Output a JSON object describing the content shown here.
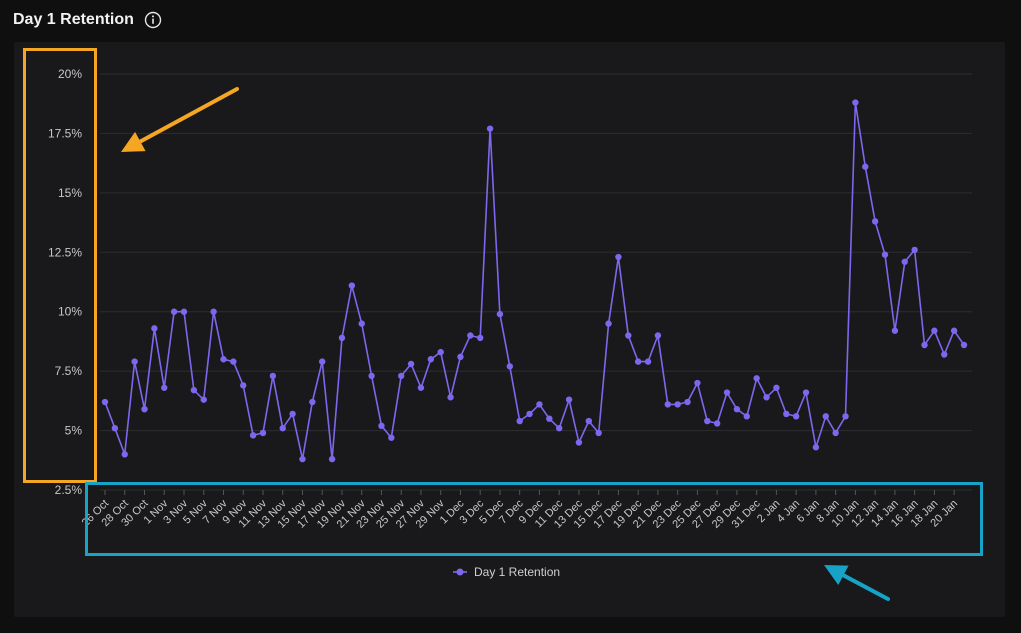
{
  "header": {
    "title": "Day 1 Retention",
    "info_icon": "info-circle-icon"
  },
  "colors": {
    "line": "#7b68ee",
    "grid": "#2e2e31",
    "orange_box": "#f5a623",
    "cyan_box": "#17a2c8"
  },
  "chart_data": {
    "type": "line",
    "title": "Day 1 Retention",
    "xlabel": "",
    "ylabel": "",
    "ylim": [
      2.5,
      20
    ],
    "yticks": [
      "2.5%",
      "5%",
      "7.5%",
      "10%",
      "12.5%",
      "15%",
      "17.5%",
      "20%"
    ],
    "ytick_values": [
      2.5,
      5,
      7.5,
      10,
      12.5,
      15,
      17.5,
      20
    ],
    "grid": true,
    "legend_position": "bottom",
    "x": [
      "26 Oct",
      "27 Oct",
      "28 Oct",
      "29 Oct",
      "30 Oct",
      "31 Oct",
      "1 Nov",
      "2 Nov",
      "3 Nov",
      "4 Nov",
      "5 Nov",
      "6 Nov",
      "7 Nov",
      "8 Nov",
      "9 Nov",
      "10 Nov",
      "11 Nov",
      "12 Nov",
      "13 Nov",
      "14 Nov",
      "15 Nov",
      "16 Nov",
      "17 Nov",
      "18 Nov",
      "19 Nov",
      "20 Nov",
      "21 Nov",
      "22 Nov",
      "23 Nov",
      "24 Nov",
      "25 Nov",
      "26 Nov",
      "27 Nov",
      "28 Nov",
      "29 Nov",
      "30 Nov",
      "1 Dec",
      "2 Dec",
      "3 Dec",
      "4 Dec",
      "5 Dec",
      "6 Dec",
      "7 Dec",
      "8 Dec",
      "9 Dec",
      "10 Dec",
      "11 Dec",
      "12 Dec",
      "13 Dec",
      "14 Dec",
      "15 Dec",
      "16 Dec",
      "17 Dec",
      "18 Dec",
      "19 Dec",
      "20 Dec",
      "21 Dec",
      "22 Dec",
      "23 Dec",
      "24 Dec",
      "25 Dec",
      "26 Dec",
      "27 Dec",
      "28 Dec",
      "29 Dec",
      "30 Dec",
      "31 Dec",
      "1 Jan",
      "2 Jan",
      "3 Jan",
      "4 Jan",
      "5 Jan",
      "6 Jan",
      "7 Jan",
      "8 Jan",
      "9 Jan",
      "10 Jan",
      "11 Jan",
      "12 Jan",
      "13 Jan",
      "14 Jan",
      "15 Jan",
      "16 Jan",
      "17 Jan",
      "18 Jan",
      "19 Jan",
      "20 Jan",
      "21 Jan"
    ],
    "xtick_labels": [
      "26 Oct",
      "28 Oct",
      "30 Oct",
      "1 Nov",
      "3 Nov",
      "5 Nov",
      "7 Nov",
      "9 Nov",
      "11 Nov",
      "13 Nov",
      "15 Nov",
      "17 Nov",
      "19 Nov",
      "21 Nov",
      "23 Nov",
      "25 Nov",
      "27 Nov",
      "29 Nov",
      "1 Dec",
      "3 Dec",
      "5 Dec",
      "7 Dec",
      "9 Dec",
      "11 Dec",
      "13 Dec",
      "15 Dec",
      "17 Dec",
      "19 Dec",
      "21 Dec",
      "23 Dec",
      "25 Dec",
      "27 Dec",
      "29 Dec",
      "31 Dec",
      "2 Jan",
      "4 Jan",
      "6 Jan",
      "8 Jan",
      "10 Jan",
      "12 Jan",
      "14 Jan",
      "16 Jan",
      "18 Jan",
      "20 Jan"
    ],
    "series": [
      {
        "name": "Day 1 Retention",
        "color": "#7b68ee",
        "values": [
          6.2,
          5.1,
          4.0,
          7.9,
          5.9,
          9.3,
          6.8,
          10.0,
          10.0,
          6.7,
          6.3,
          10.0,
          8.0,
          7.9,
          6.9,
          4.8,
          4.9,
          7.3,
          5.1,
          5.7,
          3.8,
          6.2,
          7.9,
          3.8,
          8.9,
          11.1,
          9.5,
          7.3,
          5.2,
          4.7,
          7.3,
          7.8,
          6.8,
          8.0,
          8.3,
          6.4,
          8.1,
          9.0,
          8.9,
          17.7,
          9.9,
          7.7,
          5.4,
          5.7,
          6.1,
          5.5,
          5.1,
          6.3,
          4.5,
          5.4,
          4.9,
          9.5,
          12.3,
          9.0,
          7.9,
          7.9,
          9.0,
          6.1,
          6.1,
          6.2,
          7.0,
          5.4,
          5.3,
          6.6,
          5.9,
          5.6,
          7.2,
          6.4,
          6.8,
          5.7,
          5.6,
          6.6,
          4.3,
          5.6,
          4.9,
          5.6,
          18.8,
          16.1,
          13.8,
          12.4,
          9.2,
          12.1,
          12.6,
          8.6,
          9.2,
          8.2,
          9.2,
          8.6
        ]
      }
    ]
  }
}
